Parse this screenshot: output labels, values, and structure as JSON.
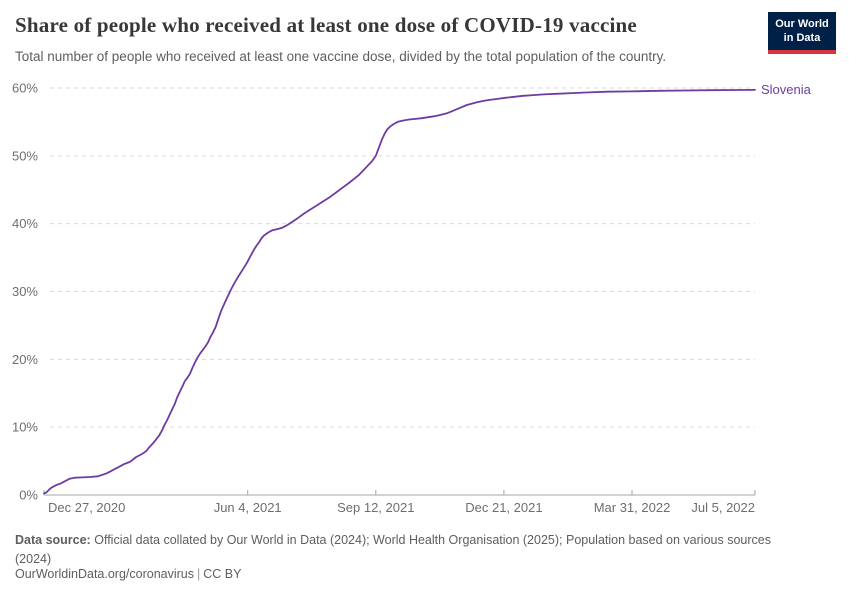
{
  "header": {
    "title": "Share of people who received at least one dose of COVID-19 vaccine",
    "subtitle": "Total number of people who received at least one vaccine dose, divided by the total population of the country."
  },
  "logo": {
    "line1": "Our World",
    "line2": "in Data"
  },
  "colors": {
    "series_line": "#6d3ca3",
    "logo_bg": "#002147",
    "logo_accent": "#d7373c",
    "grid_line": "#d9d9d9",
    "axis_line": "#a5a5a5",
    "tick_text": "#6e6e6e"
  },
  "chart_data": {
    "type": "line",
    "title": "Share of people who received at least one dose of COVID-19 vaccine",
    "xlabel": "",
    "ylabel": "",
    "grid": "dashed-horizontal",
    "legend_position": "series-end-label",
    "x_axis": {
      "unit": "days since Dec 27, 2020",
      "range": [
        0,
        555
      ],
      "ticks": [
        {
          "day": 0,
          "label": "Dec 27, 2020",
          "align": "start"
        },
        {
          "day": 159,
          "label": "Jun 4, 2021",
          "align": "middle"
        },
        {
          "day": 259,
          "label": "Sep 12, 2021",
          "align": "middle"
        },
        {
          "day": 359,
          "label": "Dec 21, 2021",
          "align": "middle"
        },
        {
          "day": 459,
          "label": "Mar 31, 2022",
          "align": "middle"
        },
        {
          "day": 555,
          "label": "Jul 5, 2022",
          "align": "end"
        }
      ]
    },
    "y_axis": {
      "range": [
        0,
        60
      ],
      "format": "percent",
      "ticks": [
        {
          "v": 0,
          "label": "0%"
        },
        {
          "v": 10,
          "label": "10%"
        },
        {
          "v": 20,
          "label": "20%"
        },
        {
          "v": 30,
          "label": "30%"
        },
        {
          "v": 40,
          "label": "40%"
        },
        {
          "v": 50,
          "label": "50%"
        },
        {
          "v": 60,
          "label": "60%"
        }
      ]
    },
    "series": [
      {
        "name": "Slovenia",
        "color": "#6d3ca3",
        "points": [
          [
            0,
            0.2
          ],
          [
            2,
            0.4
          ],
          [
            4,
            0.8
          ],
          [
            6,
            1.1
          ],
          [
            8,
            1.3
          ],
          [
            10,
            1.5
          ],
          [
            13,
            1.7
          ],
          [
            16,
            2.0
          ],
          [
            18,
            2.2
          ],
          [
            20,
            2.4
          ],
          [
            24,
            2.55
          ],
          [
            30,
            2.6
          ],
          [
            36,
            2.65
          ],
          [
            42,
            2.75
          ],
          [
            46,
            3.0
          ],
          [
            49,
            3.2
          ],
          [
            52,
            3.5
          ],
          [
            55,
            3.8
          ],
          [
            57,
            4.0
          ],
          [
            60,
            4.3
          ],
          [
            63,
            4.6
          ],
          [
            66,
            4.8
          ],
          [
            68,
            5.0
          ],
          [
            70,
            5.3
          ],
          [
            72,
            5.6
          ],
          [
            75,
            5.9
          ],
          [
            77,
            6.1
          ],
          [
            80,
            6.5
          ],
          [
            82,
            7.0
          ],
          [
            85,
            7.6
          ],
          [
            88,
            8.3
          ],
          [
            90,
            8.8
          ],
          [
            92,
            9.5
          ],
          [
            94,
            10.3
          ],
          [
            96,
            11.0
          ],
          [
            98,
            11.8
          ],
          [
            100,
            12.6
          ],
          [
            102,
            13.4
          ],
          [
            104,
            14.4
          ],
          [
            106,
            15.2
          ],
          [
            108,
            16.0
          ],
          [
            110,
            16.8
          ],
          [
            112,
            17.3
          ],
          [
            114,
            17.9
          ],
          [
            116,
            18.8
          ],
          [
            118,
            19.6
          ],
          [
            120,
            20.3
          ],
          [
            122,
            20.9
          ],
          [
            124,
            21.4
          ],
          [
            126,
            21.9
          ],
          [
            128,
            22.5
          ],
          [
            130,
            23.3
          ],
          [
            132,
            24.0
          ],
          [
            134,
            24.8
          ],
          [
            136,
            25.9
          ],
          [
            138,
            27.0
          ],
          [
            140,
            27.9
          ],
          [
            142,
            28.7
          ],
          [
            144,
            29.5
          ],
          [
            146,
            30.3
          ],
          [
            148,
            31.0
          ],
          [
            150,
            31.7
          ],
          [
            152,
            32.3
          ],
          [
            154,
            32.9
          ],
          [
            156,
            33.5
          ],
          [
            158,
            34.1
          ],
          [
            160,
            34.8
          ],
          [
            162,
            35.5
          ],
          [
            164,
            36.2
          ],
          [
            166,
            36.8
          ],
          [
            168,
            37.3
          ],
          [
            170,
            37.9
          ],
          [
            172,
            38.3
          ],
          [
            175,
            38.7
          ],
          [
            178,
            39.0
          ],
          [
            182,
            39.2
          ],
          [
            186,
            39.4
          ],
          [
            190,
            39.8
          ],
          [
            194,
            40.3
          ],
          [
            198,
            40.8
          ],
          [
            203,
            41.5
          ],
          [
            208,
            42.1
          ],
          [
            213,
            42.7
          ],
          [
            218,
            43.3
          ],
          [
            223,
            43.9
          ],
          [
            228,
            44.6
          ],
          [
            233,
            45.3
          ],
          [
            238,
            46.0
          ],
          [
            242,
            46.6
          ],
          [
            246,
            47.2
          ],
          [
            250,
            48.0
          ],
          [
            253,
            48.6
          ],
          [
            256,
            49.2
          ],
          [
            259,
            50.0
          ],
          [
            260,
            50.5
          ],
          [
            262,
            51.5
          ],
          [
            264,
            52.5
          ],
          [
            266,
            53.3
          ],
          [
            268,
            53.9
          ],
          [
            270,
            54.3
          ],
          [
            273,
            54.7
          ],
          [
            276,
            55.0
          ],
          [
            280,
            55.2
          ],
          [
            285,
            55.35
          ],
          [
            290,
            55.45
          ],
          [
            295,
            55.55
          ],
          [
            300,
            55.7
          ],
          [
            305,
            55.85
          ],
          [
            310,
            56.05
          ],
          [
            315,
            56.3
          ],
          [
            320,
            56.7
          ],
          [
            325,
            57.1
          ],
          [
            330,
            57.5
          ],
          [
            334,
            57.7
          ],
          [
            338,
            57.9
          ],
          [
            343,
            58.1
          ],
          [
            348,
            58.25
          ],
          [
            354,
            58.4
          ],
          [
            360,
            58.55
          ],
          [
            367,
            58.7
          ],
          [
            374,
            58.85
          ],
          [
            382,
            58.95
          ],
          [
            390,
            59.05
          ],
          [
            400,
            59.15
          ],
          [
            412,
            59.25
          ],
          [
            425,
            59.35
          ],
          [
            440,
            59.45
          ],
          [
            459,
            59.5
          ],
          [
            480,
            59.58
          ],
          [
            500,
            59.63
          ],
          [
            520,
            59.67
          ],
          [
            540,
            59.7
          ],
          [
            555,
            59.72
          ]
        ]
      }
    ]
  },
  "footer": {
    "source_label": "Data source:",
    "source_text": "Official data collated by Our World in Data (2024); World Health Organisation (2025); Population based on various sources (2024)",
    "link": "OurWorldinData.org/coronavirus",
    "separator": "|",
    "license": "CC BY"
  }
}
